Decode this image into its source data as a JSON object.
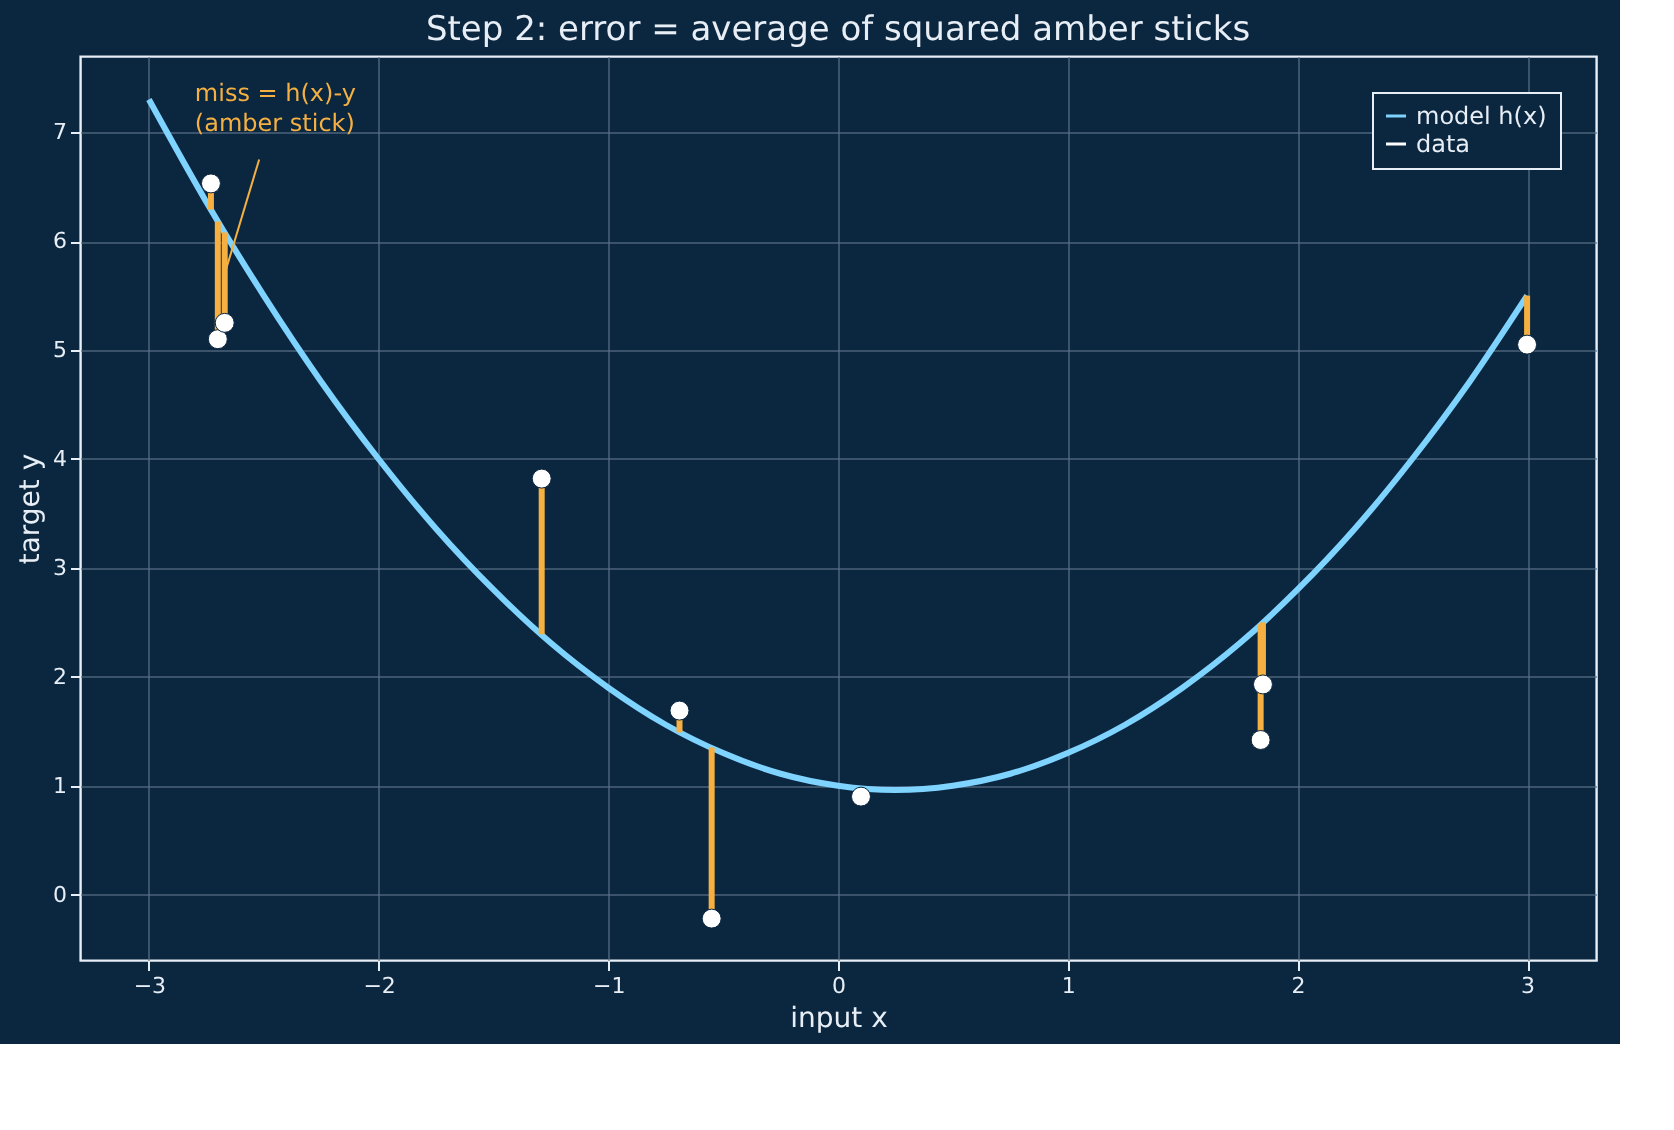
{
  "chart_data": {
    "type": "line",
    "title": "Step 2: error = average of squared amber sticks",
    "xlabel": "input x",
    "ylabel": "target y",
    "series": [
      {
        "name": "model h(x)",
        "color": "#7fd3ff",
        "x": [
          -3,
          -2.75,
          -2.5,
          -2.25,
          -2,
          -1.75,
          -1.5,
          -1.25,
          -1,
          -0.75,
          -0.5,
          -0.25,
          0,
          0.25,
          0.5,
          0.75,
          1,
          1.25,
          1.5,
          1.75,
          2,
          2.25,
          2.5,
          2.75,
          3
        ],
        "values": [
          7.3,
          6.36,
          5.5,
          4.71,
          4.0,
          3.36,
          2.8,
          2.31,
          1.9,
          1.56,
          1.3,
          1.11,
          1.0,
          0.96,
          1.0,
          1.11,
          1.3,
          1.56,
          1.9,
          2.31,
          2.8,
          3.36,
          4.0,
          4.71,
          5.5
        ]
      },
      {
        "name": "data",
        "type": "scatter",
        "color": "#ffffff",
        "marker": "circle",
        "x": [
          -2.73,
          -2.7,
          -2.67,
          -1.29,
          -0.69,
          -0.55,
          0.1,
          1.84,
          1.85,
          3.0
        ],
        "values": [
          6.53,
          5.1,
          5.25,
          3.82,
          1.69,
          -0.22,
          0.9,
          1.42,
          1.93,
          5.05
        ],
        "errors": [
          [
            6.29,
            6.53
          ],
          [
            5.1,
            6.18
          ],
          [
            5.25,
            6.08
          ],
          [
            2.39,
            3.82
          ],
          [
            1.49,
            1.69
          ],
          [
            -0.22,
            1.35
          ],
          null,
          [
            1.42,
            2.48
          ],
          [
            1.93,
            2.5
          ],
          [
            5.05,
            5.5
          ]
        ]
      }
    ],
    "annotations": [
      {
        "text": "miss = h(x)-y\n(amber stick)",
        "x": -2.67,
        "y": 5.7
      }
    ],
    "xlim": [
      -3.3,
      3.3
    ],
    "ylim": [
      -0.6,
      7.7
    ],
    "xticks": [
      -3,
      -2,
      -1,
      0,
      1,
      2,
      3
    ],
    "yticks": [
      0,
      1,
      2,
      3,
      4,
      5,
      6,
      7
    ],
    "grid": true,
    "legend": "top right"
  }
}
